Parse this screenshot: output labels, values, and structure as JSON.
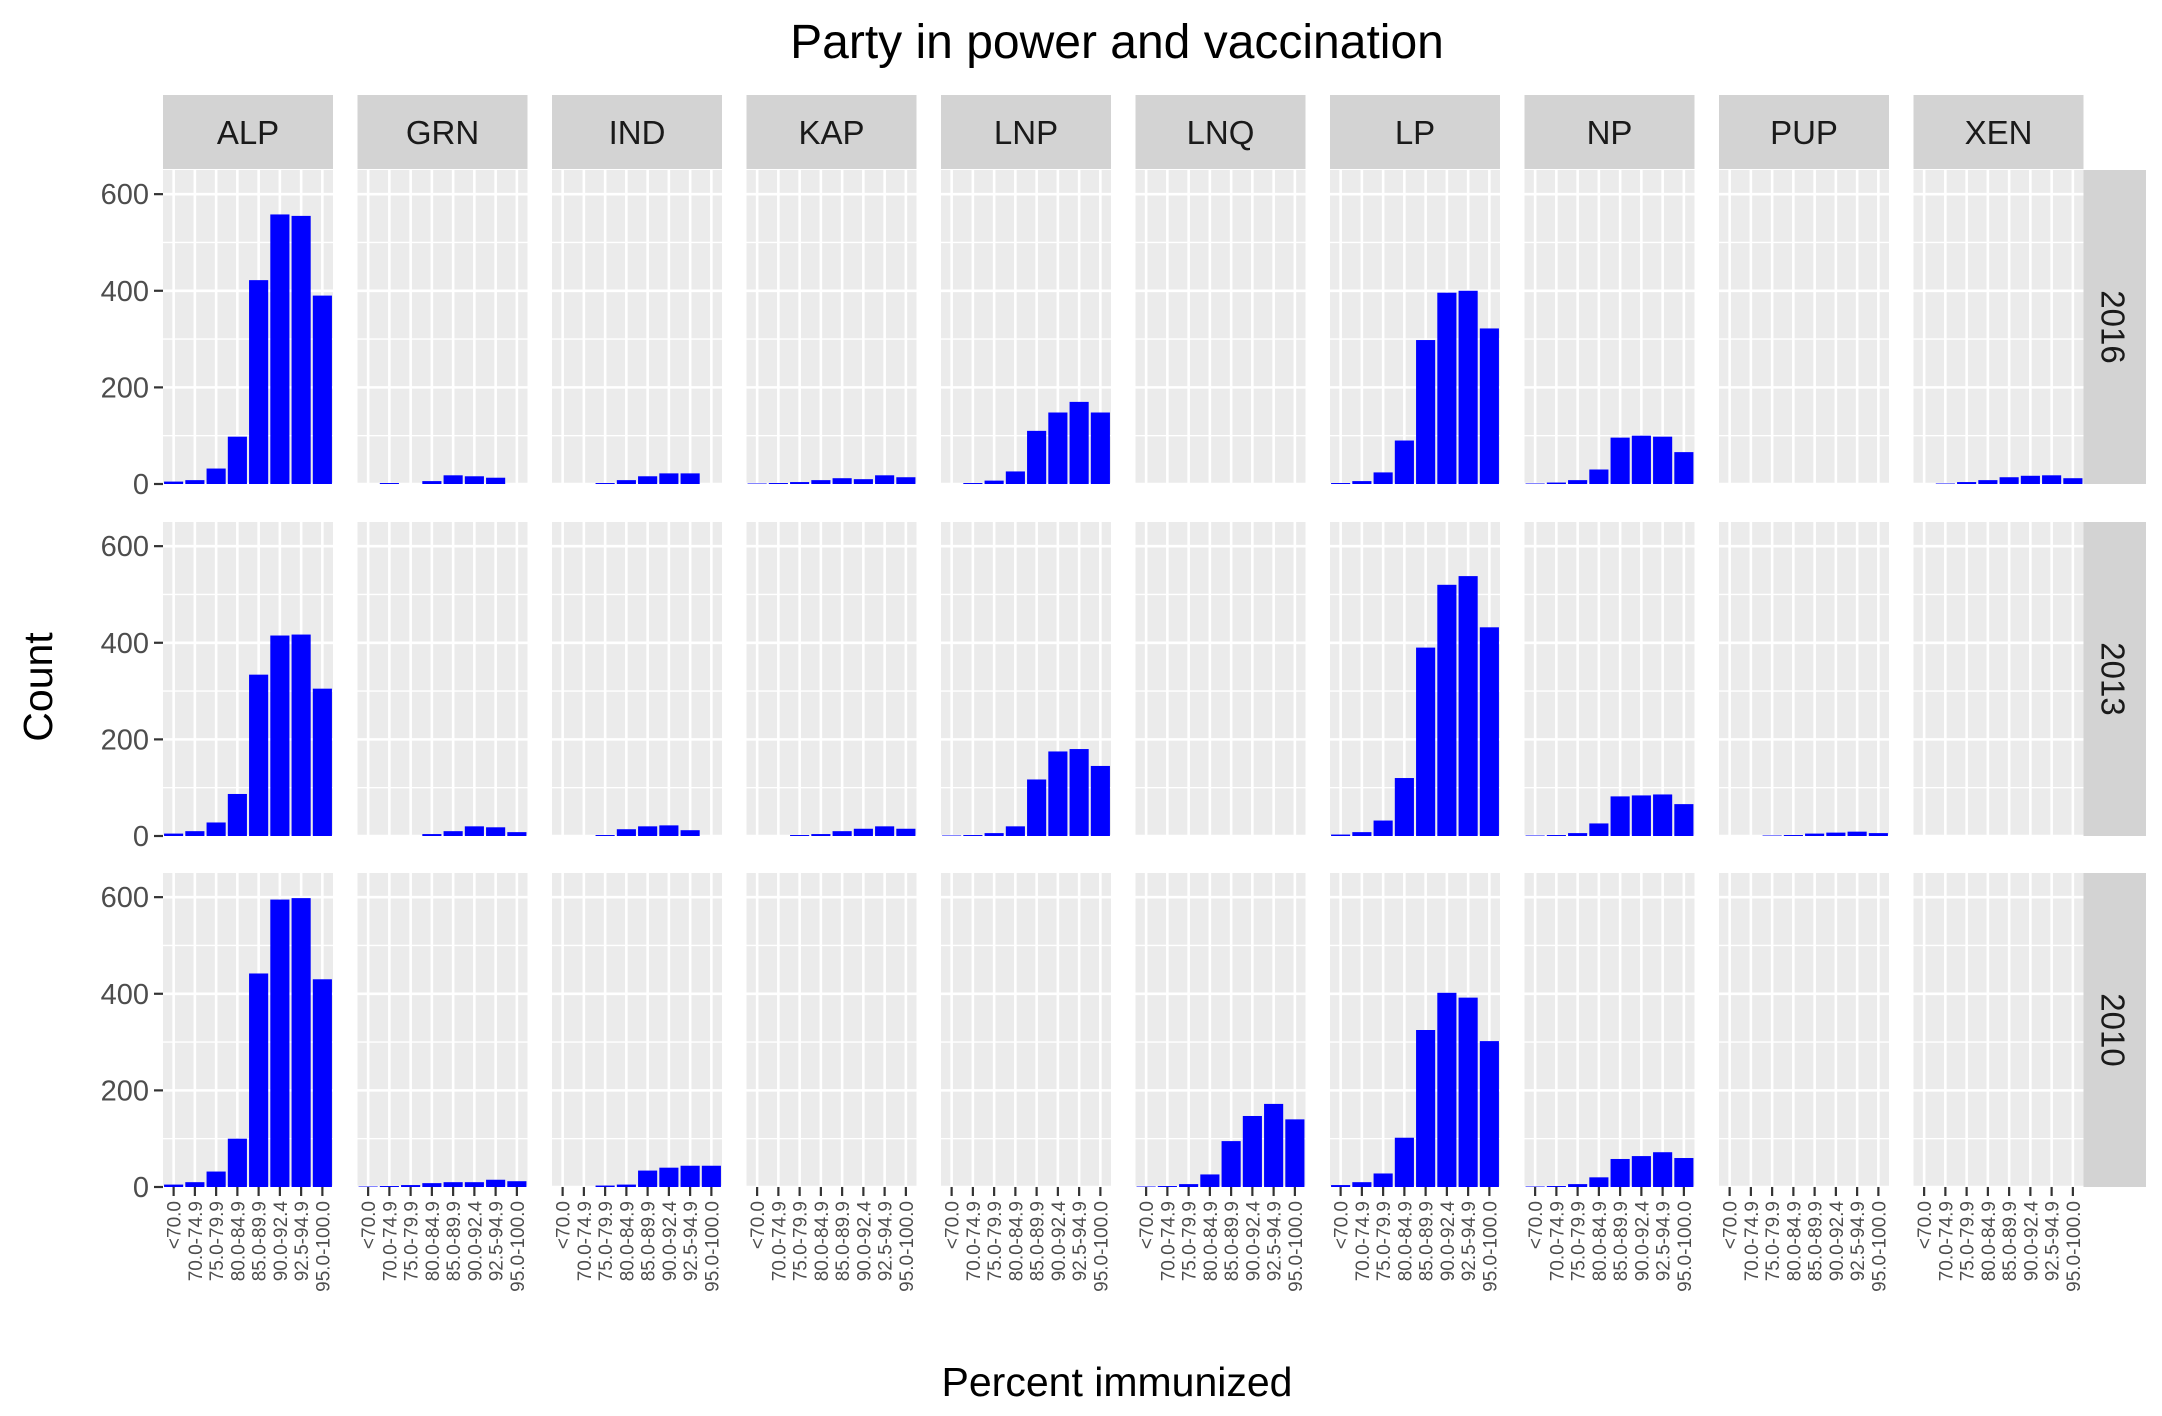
{
  "chart_data": {
    "type": "bar",
    "title": "Party in power and vaccination",
    "xlabel": "Percent immunized",
    "ylabel": "Count",
    "ylim": [
      0,
      650
    ],
    "yticks": [
      0,
      200,
      400,
      600
    ],
    "categories": [
      "<70.0",
      "70.0-74.9",
      "75.0-79.9",
      "80.0-84.9",
      "85.0-89.9",
      "90.0-92.4",
      "92.5-94.9",
      "95.0-100.0"
    ],
    "facet_columns": [
      "ALP",
      "GRN",
      "IND",
      "KAP",
      "LNP",
      "LNQ",
      "LP",
      "NP",
      "PUP",
      "XEN"
    ],
    "facet_rows": [
      "2016",
      "2013",
      "2010"
    ],
    "bar_color": "#0000ff",
    "panel_background": "#ebebeb",
    "strip_background": "#d3d3d3",
    "grid": true,
    "panels": {
      "2016": {
        "ALP": [
          5,
          8,
          32,
          98,
          422,
          558,
          555,
          390
        ],
        "GRN": [
          0,
          2,
          0,
          6,
          18,
          16,
          13,
          0
        ],
        "IND": [
          0,
          0,
          2,
          8,
          16,
          22,
          22,
          0
        ],
        "KAP": [
          1,
          2,
          4,
          8,
          12,
          10,
          18,
          14
        ],
        "LNP": [
          0,
          2,
          7,
          26,
          110,
          148,
          170,
          148
        ],
        "LNQ": [
          0,
          0,
          0,
          0,
          0,
          0,
          0,
          0
        ],
        "LP": [
          2,
          6,
          24,
          90,
          298,
          396,
          400,
          322
        ],
        "NP": [
          1,
          3,
          8,
          30,
          96,
          100,
          98,
          66
        ],
        "PUP": [
          0,
          0,
          0,
          0,
          0,
          0,
          0,
          0
        ],
        "XEN": [
          0,
          1,
          4,
          8,
          14,
          17,
          18,
          12
        ]
      },
      "2013": {
        "ALP": [
          5,
          10,
          28,
          87,
          334,
          415,
          417,
          305
        ],
        "GRN": [
          0,
          0,
          0,
          4,
          10,
          20,
          18,
          8
        ],
        "IND": [
          0,
          0,
          2,
          14,
          20,
          22,
          12,
          0
        ],
        "KAP": [
          0,
          0,
          2,
          4,
          10,
          15,
          20,
          15
        ],
        "LNP": [
          1,
          2,
          6,
          20,
          117,
          175,
          180,
          145
        ],
        "LNQ": [
          0,
          0,
          0,
          0,
          0,
          0,
          0,
          0
        ],
        "LP": [
          3,
          8,
          32,
          120,
          390,
          520,
          538,
          432
        ],
        "NP": [
          1,
          2,
          6,
          26,
          82,
          84,
          86,
          66
        ],
        "PUP": [
          0,
          0,
          1,
          2,
          5,
          7,
          9,
          6
        ],
        "XEN": [
          0,
          0,
          0,
          0,
          0,
          0,
          0,
          0
        ]
      },
      "2010": {
        "ALP": [
          5,
          10,
          32,
          100,
          442,
          595,
          598,
          430
        ],
        "GRN": [
          1,
          2,
          4,
          8,
          10,
          10,
          15,
          12
        ],
        "IND": [
          0,
          0,
          3,
          5,
          34,
          40,
          44,
          44
        ],
        "KAP": [
          0,
          0,
          0,
          0,
          0,
          0,
          0,
          0
        ],
        "LNP": [
          0,
          0,
          0,
          0,
          0,
          0,
          0,
          0
        ],
        "LNQ": [
          1,
          2,
          6,
          26,
          95,
          147,
          172,
          140
        ],
        "LP": [
          4,
          10,
          28,
          102,
          325,
          402,
          392,
          302
        ],
        "NP": [
          1,
          2,
          6,
          20,
          58,
          64,
          72,
          60
        ],
        "PUP": [
          0,
          0,
          0,
          0,
          0,
          0,
          0,
          0
        ],
        "XEN": [
          0,
          0,
          0,
          0,
          0,
          0,
          0,
          0
        ]
      }
    }
  }
}
